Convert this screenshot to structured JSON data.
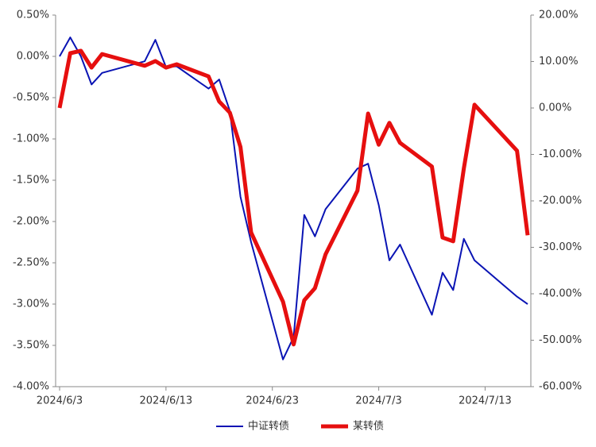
{
  "chart_data": {
    "type": "line",
    "x": [
      "2024-06-03",
      "2024-06-04",
      "2024-06-05",
      "2024-06-06",
      "2024-06-07",
      "2024-06-11",
      "2024-06-12",
      "2024-06-13",
      "2024-06-14",
      "2024-06-17",
      "2024-06-18",
      "2024-06-19",
      "2024-06-20",
      "2024-06-21",
      "2024-06-24",
      "2024-06-25",
      "2024-06-26",
      "2024-06-27",
      "2024-06-28",
      "2024-07-01",
      "2024-07-02",
      "2024-07-03",
      "2024-07-04",
      "2024-07-05",
      "2024-07-08",
      "2024-07-09",
      "2024-07-10",
      "2024-07-11",
      "2024-07-12",
      "2024-07-16",
      "2024-07-17"
    ],
    "xlim": [
      "2024-06-03",
      "2024-07-17"
    ],
    "xticks": [
      {
        "value": "2024-06-03",
        "label": "2024/6/3"
      },
      {
        "value": "2024-06-13",
        "label": "2024/6/13"
      },
      {
        "value": "2024-06-23",
        "label": "2024/6/23"
      },
      {
        "value": "2024-07-03",
        "label": "2024/7/3"
      },
      {
        "value": "2024-07-13",
        "label": "2024/7/13"
      }
    ],
    "ylim": [
      -4,
      0.5
    ],
    "yticks": [
      {
        "value": 0.5,
        "label": "0.50%"
      },
      {
        "value": 0,
        "label": "0.00%"
      },
      {
        "value": -0.5,
        "label": "-0.50%"
      },
      {
        "value": -1,
        "label": "-1.00%"
      },
      {
        "value": -1.5,
        "label": "-1.50%"
      },
      {
        "value": -2,
        "label": "-2.00%"
      },
      {
        "value": -2.5,
        "label": "-2.50%"
      },
      {
        "value": -3,
        "label": "-3.00%"
      },
      {
        "value": -3.5,
        "label": "-3.50%"
      },
      {
        "value": -4,
        "label": "-4.00%"
      }
    ],
    "y2lim": [
      -60,
      20
    ],
    "y2ticks": [
      {
        "value": 20,
        "label": "20.00%"
      },
      {
        "value": 10,
        "label": "10.00%"
      },
      {
        "value": 0,
        "label": "0.00%"
      },
      {
        "value": -10,
        "label": "-10.00%"
      },
      {
        "value": -20,
        "label": "-20.00%"
      },
      {
        "value": -30,
        "label": "-30.00%"
      },
      {
        "value": -40,
        "label": "-40.00%"
      },
      {
        "value": -50,
        "label": "-50.00%"
      },
      {
        "value": -60,
        "label": "-60.00%"
      }
    ],
    "series": [
      {
        "name": "中证转债",
        "color": "#0a14b4",
        "width": 2,
        "values": [
          0.0,
          0.23,
          0.0,
          -0.34,
          -0.2,
          -0.06,
          0.2,
          -0.13,
          -0.12,
          -0.39,
          -0.28,
          -0.66,
          -1.7,
          -2.25,
          -3.67,
          -3.4,
          -1.92,
          -2.18,
          -1.85,
          -1.36,
          -1.3,
          -1.8,
          -2.47,
          -2.28,
          -3.13,
          -2.62,
          -2.83,
          -2.21,
          -2.47,
          -2.91,
          -3.0
        ]
      },
      {
        "name": "某转债",
        "color": "#e60f0f",
        "width": 5,
        "axis": "y2",
        "values": [
          0.0,
          11.8,
          12.3,
          8.7,
          11.6,
          9.1,
          10.1,
          8.7,
          9.4,
          6.8,
          1.4,
          -1.0,
          -8.4,
          -26.8,
          -41.7,
          -50.9,
          -41.4,
          -38.8,
          -31.5,
          -17.8,
          -1.2,
          -7.9,
          -3.2,
          -7.5,
          -12.6,
          -27.9,
          -28.7,
          -13.0,
          0.7,
          -9.2,
          -27.4
        ]
      }
    ]
  }
}
